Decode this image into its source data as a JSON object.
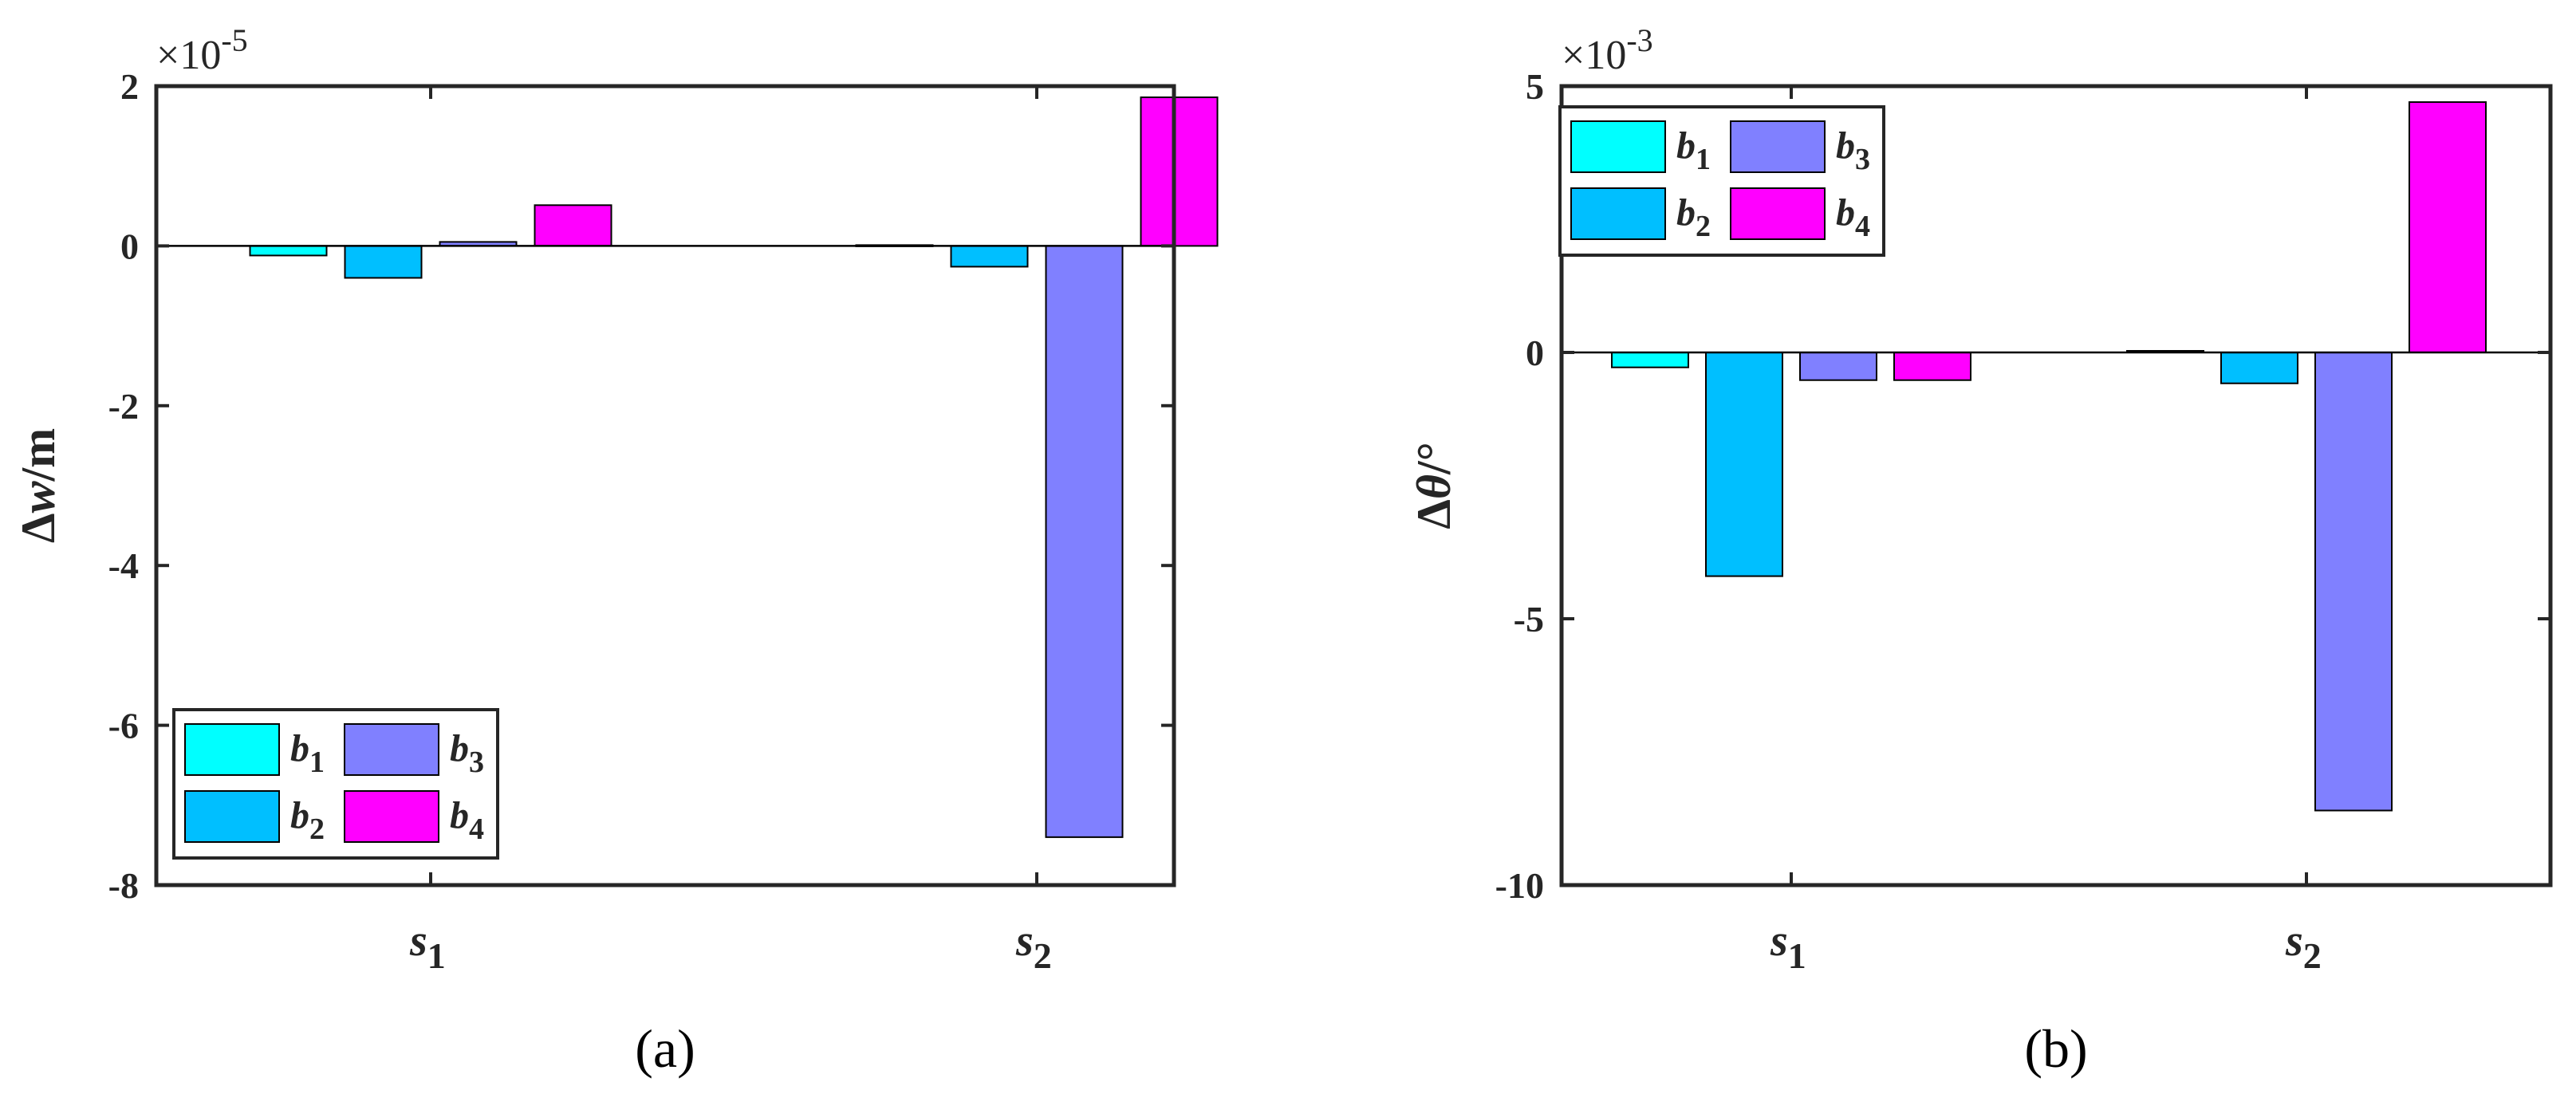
{
  "chart_data": [
    {
      "type": "bar",
      "panel_label": "(a)",
      "categories": [
        "s1",
        "s2"
      ],
      "category_labels": [
        {
          "main": "s",
          "sub": "1"
        },
        {
          "main": "s",
          "sub": "2"
        }
      ],
      "series": [
        {
          "name": "b1",
          "label_main": "b",
          "label_sub": "1",
          "color": "#00FFFF",
          "values": [
            -1.2e-06,
            1e-07
          ]
        },
        {
          "name": "b2",
          "label_main": "b",
          "label_sub": "2",
          "color": "#00BFFF",
          "values": [
            -4e-06,
            -2.6e-06
          ]
        },
        {
          "name": "b3",
          "label_main": "b",
          "label_sub": "3",
          "color": "#8080FF",
          "values": [
            5e-07,
            -7.4e-05
          ]
        },
        {
          "name": "b4",
          "label_main": "b",
          "label_sub": "4",
          "color": "#FF00FF",
          "values": [
            5.1e-06,
            1.86e-05
          ]
        }
      ],
      "ylim": [
        -8e-05,
        2e-05
      ],
      "yticks": [
        2e-05,
        0,
        -2e-05,
        -4e-05,
        -6e-05,
        -8e-05
      ],
      "ytick_labels": [
        "2",
        "0",
        "-2",
        "-4",
        "-6",
        "-8"
      ],
      "exponent_label": {
        "base": "×10",
        "exp": "-5"
      },
      "ylabel": {
        "prefix": "Δ",
        "var": "w",
        "unit": "/m"
      },
      "xlabel": "",
      "legend_position": "bottom-left",
      "grid": false
    },
    {
      "type": "bar",
      "panel_label": "(b)",
      "categories": [
        "s1",
        "s2"
      ],
      "category_labels": [
        {
          "main": "s",
          "sub": "1"
        },
        {
          "main": "s",
          "sub": "2"
        }
      ],
      "series": [
        {
          "name": "b1",
          "label_main": "b",
          "label_sub": "1",
          "color": "#00FFFF",
          "values": [
            -0.00028,
            3e-05
          ]
        },
        {
          "name": "b2",
          "label_main": "b",
          "label_sub": "2",
          "color": "#00BFFF",
          "values": [
            -0.0042,
            -0.00058
          ]
        },
        {
          "name": "b3",
          "label_main": "b",
          "label_sub": "3",
          "color": "#8080FF",
          "values": [
            -0.00052,
            -0.0086
          ]
        },
        {
          "name": "b4",
          "label_main": "b",
          "label_sub": "4",
          "color": "#FF00FF",
          "values": [
            -0.00052,
            0.0047
          ]
        }
      ],
      "ylim": [
        -0.01,
        0.005
      ],
      "yticks": [
        0.005,
        0,
        -0.005,
        -0.01
      ],
      "ytick_labels": [
        "5",
        "0",
        "-5",
        "-10"
      ],
      "exponent_label": {
        "base": "×10",
        "exp": "-3"
      },
      "ylabel": {
        "prefix": "Δ",
        "var": "θ",
        "unit": "/°"
      },
      "xlabel": "",
      "legend_position": "top-left",
      "grid": false
    }
  ]
}
